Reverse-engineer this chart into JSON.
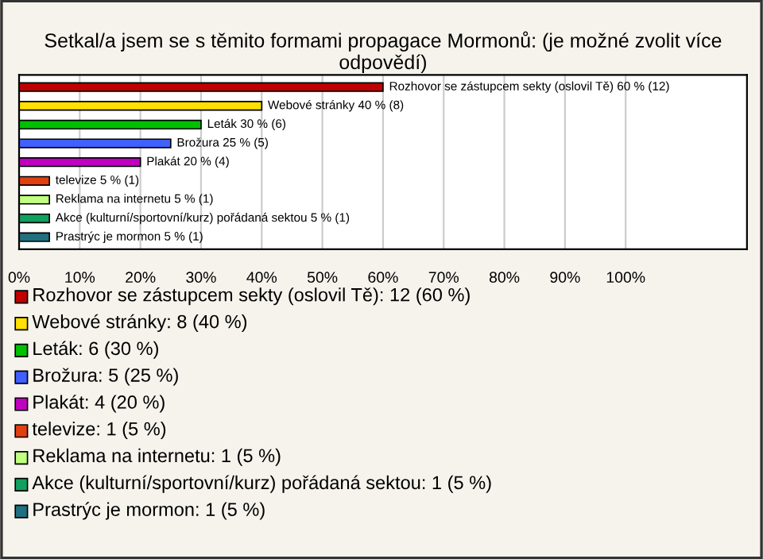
{
  "chart_data": {
    "type": "bar",
    "orientation": "horizontal",
    "title": "Setkal/a jsem se s těmito formami propagace Mormonů: (je možné zvolit více odpovědí)",
    "categories": [
      null,
      null,
      null,
      null,
      null,
      null,
      null,
      null,
      null
    ],
    "values": [
      60,
      40,
      30,
      25,
      20,
      5,
      5,
      5,
      5
    ],
    "colors": [
      "#c00000",
      "#ffe000",
      "#00c000",
      "#4060ff",
      "#c000c0",
      "#e04010",
      "#c0ff80",
      "#10a060",
      "#207080"
    ],
    "value_labels": [
      "Rozhovor se zástupcem sekty (oslovil Tě) 60 % (12)",
      "Webové stránky 40 % (8)",
      "Leták 30 % (6)",
      "Brožura 25 % (5)",
      "Plakát 20 % (4)",
      "televize 5 % (1)",
      "Reklama na internetu 5 % (1)",
      "Akce (kulturní/sportovní/kurz) pořádaná sektou 5 % (1)",
      "Prastrýc je mormon 5 % (1)"
    ],
    "annotations": [
      "Rozhovor se zástupcem sekty (oslovil Tě): 12 (60 %)",
      "Webové stránky: 8 (40 %)",
      "Leták: 6 (30 %)",
      "Brožura: 5 (25 %)",
      "Plakát: 4 (20 %)",
      "televize: 1 (5 %)",
      "Reklama na internetu: 1 (5 %)",
      "Akce (kulturní/sportovní/kurz) pořádaná sektou: 1 (5 %)",
      "Prastrýc je mormon: 1 (5 %)"
    ],
    "xlim": [
      0,
      120
    ],
    "xticks": [
      {
        "value": 0,
        "label": "0%"
      },
      {
        "value": 10,
        "label": "10%"
      },
      {
        "value": 20,
        "label": "20%"
      },
      {
        "value": 30,
        "label": "30%"
      },
      {
        "value": 40,
        "label": "40%"
      },
      {
        "value": 50,
        "label": "50%"
      },
      {
        "value": 60,
        "label": "60%"
      },
      {
        "value": 70,
        "label": "70%"
      },
      {
        "value": 80,
        "label": "80%"
      },
      {
        "value": 90,
        "label": "90%"
      },
      {
        "value": 100,
        "label": "100%"
      }
    ],
    "grid": "x",
    "tick_labels": "x"
  }
}
